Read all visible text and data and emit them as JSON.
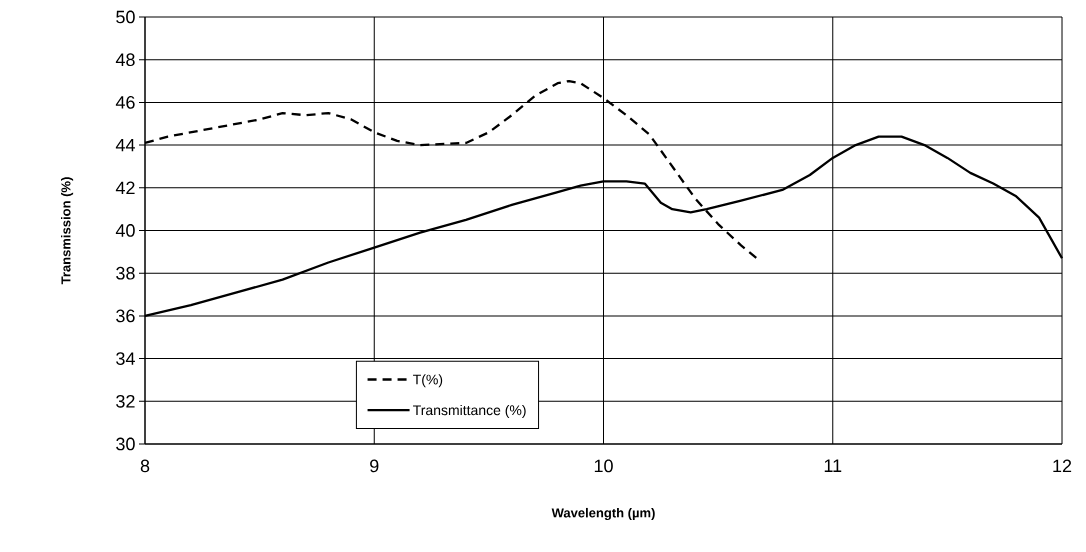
{
  "chart_data": {
    "type": "line",
    "xlabel": "Wavelength (µm)",
    "ylabel": "Transmission (%)",
    "xlim": [
      8,
      12
    ],
    "xticks": [
      8,
      9,
      10,
      11,
      12
    ],
    "ylim": [
      30,
      50
    ],
    "yticks": [
      30,
      32,
      34,
      36,
      38,
      40,
      42,
      44,
      46,
      48,
      50
    ],
    "grid": true,
    "legend": "bottom left",
    "marker": "none",
    "series": [
      {
        "name": "T(%)",
        "color": "#000000",
        "line_style": "dashed",
        "x": [
          8.0,
          8.1,
          8.2,
          8.3,
          8.4,
          8.5,
          8.6,
          8.7,
          8.8,
          8.9,
          9.0,
          9.1,
          9.2,
          9.3,
          9.4,
          9.5,
          9.6,
          9.7,
          9.8,
          9.85,
          9.9,
          10.0,
          10.1,
          10.2,
          10.3,
          10.4,
          10.5,
          10.6,
          10.68
        ],
        "values": [
          44.1,
          44.4,
          44.6,
          44.8,
          45.0,
          45.2,
          45.5,
          45.4,
          45.5,
          45.2,
          44.6,
          44.2,
          44.0,
          44.05,
          44.1,
          44.6,
          45.4,
          46.3,
          46.9,
          47.0,
          46.9,
          46.2,
          45.4,
          44.5,
          43.0,
          41.5,
          40.3,
          39.3,
          38.6
        ]
      },
      {
        "name": "Transmittance (%)",
        "color": "#000000",
        "line_style": "solid",
        "x": [
          8.0,
          8.2,
          8.4,
          8.6,
          8.8,
          9.0,
          9.2,
          9.4,
          9.6,
          9.8,
          9.9,
          10.0,
          10.1,
          10.18,
          10.25,
          10.3,
          10.38,
          10.45,
          10.6,
          10.78,
          10.9,
          11.0,
          11.1,
          11.2,
          11.3,
          11.4,
          11.5,
          11.6,
          11.7,
          11.8,
          11.9,
          12.0
        ],
        "values": [
          36.0,
          36.5,
          37.1,
          37.7,
          38.5,
          39.2,
          39.9,
          40.5,
          41.2,
          41.8,
          42.1,
          42.3,
          42.3,
          42.2,
          41.3,
          41.0,
          40.85,
          41.0,
          41.4,
          41.9,
          42.6,
          43.4,
          44.0,
          44.4,
          44.4,
          44.0,
          43.4,
          42.7,
          42.2,
          41.6,
          40.6,
          38.7
        ]
      }
    ]
  }
}
